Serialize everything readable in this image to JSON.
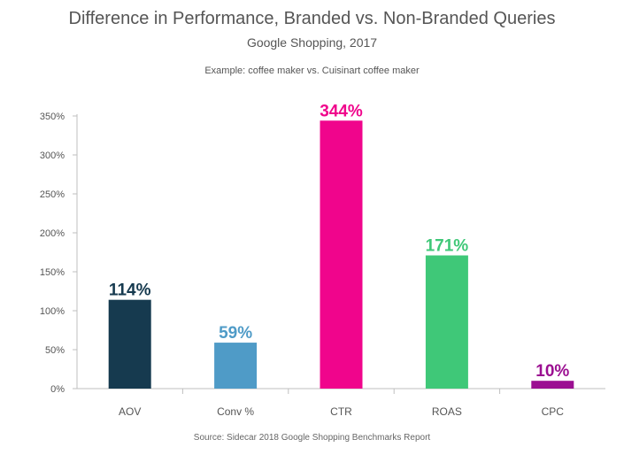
{
  "chart_data": {
    "type": "bar",
    "title": "Difference in Performance, Branded vs. Non-Branded Queries",
    "subtitle": "Google Shopping, 2017",
    "note": "Example: coffee maker vs. Cuisinart coffee maker",
    "source": "Source: Sidecar 2018 Google Shopping Benchmarks Report",
    "categories": [
      "AOV",
      "Conv %",
      "CTR",
      "ROAS",
      "CPC"
    ],
    "values": [
      114,
      59,
      344,
      171,
      10
    ],
    "data_labels": [
      "114%",
      "59%",
      "344%",
      "171%",
      "10%"
    ],
    "colors": [
      "#163a4f",
      "#4f9bc7",
      "#f0058c",
      "#3fc878",
      "#9b0f91"
    ],
    "ylim": [
      0,
      350
    ],
    "yticks": [
      0,
      50,
      100,
      150,
      200,
      250,
      300,
      350
    ],
    "ytick_labels": [
      "0%",
      "50%",
      "100%",
      "150%",
      "200%",
      "250%",
      "300%",
      "350%"
    ],
    "grid": false,
    "legend": "none",
    "xlabel": "",
    "ylabel": ""
  }
}
